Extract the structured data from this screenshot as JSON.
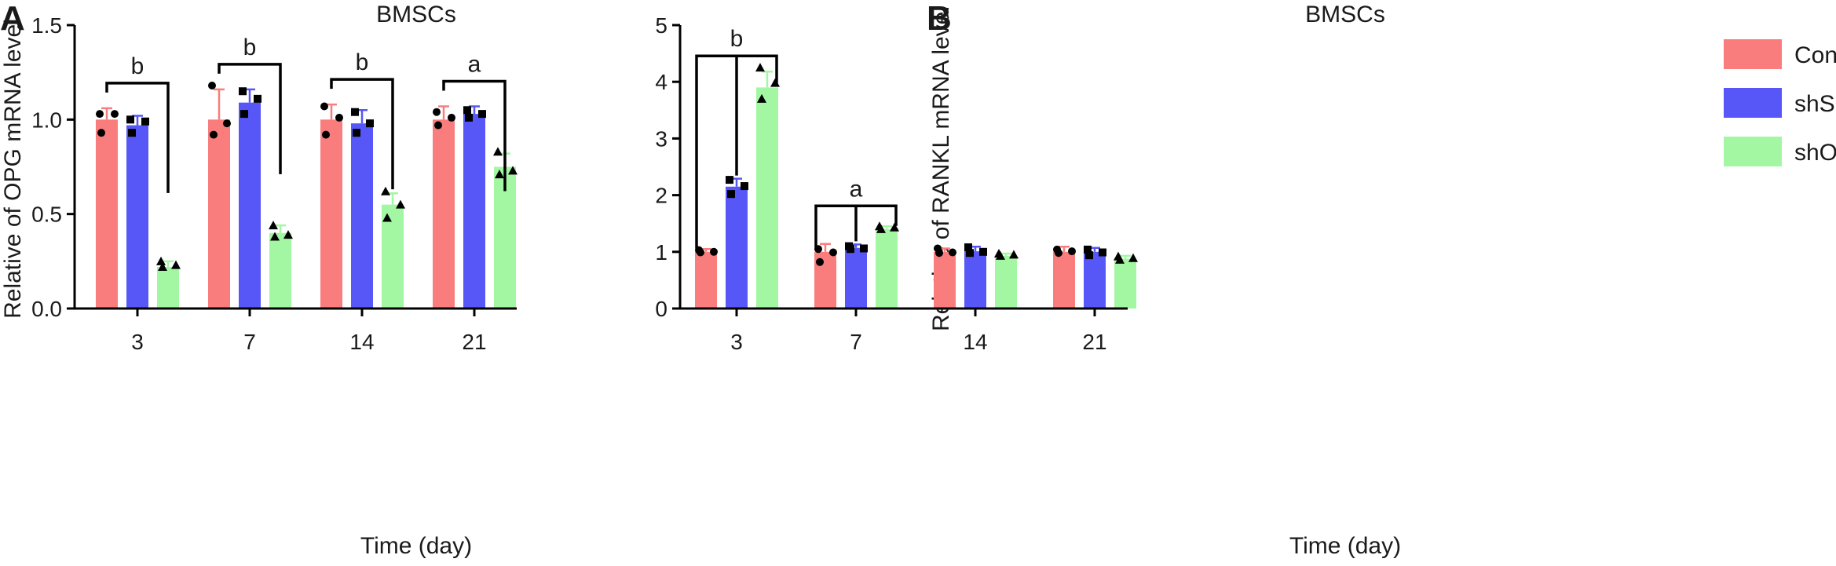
{
  "colors": {
    "Control": "#f97d7d",
    "shScr": "#5757f7",
    "shOPG": "#a3f7a3",
    "axis": "#000000"
  },
  "chart_data": [
    {
      "panel_label": "A",
      "type": "bar",
      "title": "BMSCs",
      "xlabel": "Time (day)",
      "ylabel": "Relative of OPG mRNA level",
      "ylim": [
        0,
        1.5
      ],
      "yticks": [
        "0.0",
        "0.5",
        "1.0",
        "1.5"
      ],
      "categories": [
        "3",
        "7",
        "14",
        "21"
      ],
      "series": [
        {
          "name": "Control",
          "values": [
            1.0,
            1.0,
            1.0,
            1.0
          ],
          "errors": [
            0.06,
            0.16,
            0.08,
            0.07
          ],
          "points": [
            [
              1.03,
              1.03,
              0.93
            ],
            [
              1.18,
              0.98,
              0.92
            ],
            [
              1.07,
              1.01,
              0.92
            ],
            [
              1.04,
              1.01,
              0.97
            ]
          ]
        },
        {
          "name": "shScr",
          "values": [
            0.97,
            1.09,
            0.98,
            1.03
          ],
          "errors": [
            0.05,
            0.07,
            0.07,
            0.04
          ],
          "points": [
            [
              1.0,
              0.99,
              0.93
            ],
            [
              1.15,
              1.11,
              1.03
            ],
            [
              1.04,
              0.98,
              0.93
            ],
            [
              1.05,
              1.03,
              1.01
            ]
          ]
        },
        {
          "name": "shOPG",
          "values": [
            0.22,
            0.4,
            0.55,
            0.75
          ],
          "errors": [
            0.03,
            0.04,
            0.06,
            0.07
          ],
          "points": [
            [
              0.25,
              0.23,
              0.22
            ],
            [
              0.44,
              0.39,
              0.38
            ],
            [
              0.62,
              0.55,
              0.48
            ],
            [
              0.83,
              0.73,
              0.71
            ]
          ]
        }
      ],
      "significance": [
        {
          "category": "3",
          "label": "b"
        },
        {
          "category": "7",
          "label": "b"
        },
        {
          "category": "14",
          "label": "b"
        },
        {
          "category": "21",
          "label": "a"
        }
      ]
    },
    {
      "panel_label": "B",
      "type": "bar",
      "title": "BMSCs",
      "xlabel": "Time (day)",
      "ylabel": "Relative of RANKL mRNA level",
      "ylim": [
        0,
        5
      ],
      "yticks": [
        "0",
        "1",
        "2",
        "3",
        "4",
        "5"
      ],
      "categories": [
        "3",
        "7",
        "14",
        "21"
      ],
      "legend": {
        "position": "top-right",
        "entries": [
          "Control",
          "shScr",
          "shOPG"
        ]
      },
      "series": [
        {
          "name": "Control",
          "values": [
            1.0,
            1.0,
            1.0,
            1.0
          ],
          "errors": [
            0.05,
            0.14,
            0.06,
            0.09
          ],
          "points": [
            [
              1.03,
              1.0,
              0.99
            ],
            [
              1.05,
              0.99,
              0.82
            ],
            [
              1.06,
              0.99,
              0.98
            ],
            [
              1.04,
              1.01,
              0.98
            ]
          ]
        },
        {
          "name": "shScr",
          "values": [
            2.15,
            1.07,
            1.01,
            1.0
          ],
          "errors": [
            0.14,
            0.06,
            0.08,
            0.07
          ],
          "points": [
            [
              2.27,
              2.16,
              2.02
            ],
            [
              1.1,
              1.06,
              1.05
            ],
            [
              1.08,
              1.0,
              0.98
            ],
            [
              1.04,
              0.99,
              0.94
            ]
          ]
        },
        {
          "name": "shOPG",
          "values": [
            3.9,
            1.4,
            0.93,
            0.88
          ],
          "errors": [
            0.28,
            0.05,
            0.04,
            0.05
          ],
          "points": [
            [
              4.25,
              3.98,
              3.7
            ],
            [
              1.45,
              1.43,
              1.4
            ],
            [
              0.97,
              0.95,
              0.93
            ],
            [
              0.92,
              0.89,
              0.86
            ]
          ]
        }
      ],
      "significance": [
        {
          "category": "3",
          "label": "b",
          "brackets": [
            [
              "Control",
              "shOPG"
            ],
            [
              "shScr",
              "shOPG"
            ]
          ]
        },
        {
          "category": "7",
          "label": "a",
          "brackets": [
            [
              "Control",
              "shOPG"
            ],
            [
              "shScr",
              "shOPG"
            ]
          ]
        }
      ]
    }
  ]
}
